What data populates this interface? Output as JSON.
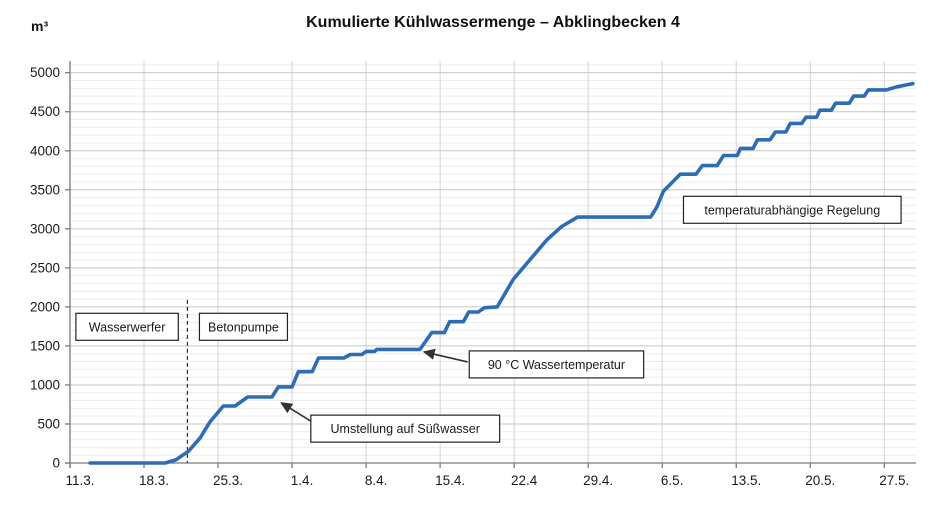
{
  "chart": {
    "title": "Kumulierte Kühlwassermenge – Abklingbecken 4",
    "unit_label": "m³"
  },
  "chart_data": {
    "type": "line",
    "title": "Kumulierte Kühlwassermenge – Abklingbecken 4",
    "ylabel": "m³",
    "xlabel": "",
    "grid": "minor horizontal every 100, major every 500, vertical weekly",
    "legend": "none",
    "x_axis": {
      "unit": "date (day.month.)",
      "domain_days": [
        0,
        80
      ],
      "tick_days": [
        0,
        7,
        14,
        21,
        28,
        35,
        42,
        49,
        56,
        63,
        70,
        77
      ],
      "tick_labels": [
        "11.3.",
        "18.3.",
        "25.3.",
        "1.4.",
        "8.4.",
        "15.4.",
        "22.4",
        "29.4.",
        "6.5.",
        "13.5.",
        "20.5.",
        "27.5."
      ]
    },
    "y_axis": {
      "unit": "m³",
      "domain": [
        0,
        5150
      ],
      "tick_step": 500,
      "minor_step": 100,
      "tick_values": [
        0,
        500,
        1000,
        1500,
        2000,
        2500,
        3000,
        3500,
        4000,
        4500,
        5000
      ]
    },
    "series": [
      {
        "name": "Kumulierte Kühlwassermenge",
        "color": "#2e6db6",
        "points_day_value": [
          [
            1.9,
            0
          ],
          [
            9.0,
            0
          ],
          [
            10.0,
            40
          ],
          [
            11.2,
            150
          ],
          [
            12.3,
            320
          ],
          [
            13.2,
            520
          ],
          [
            14.5,
            730
          ],
          [
            15.6,
            730
          ],
          [
            16.8,
            845
          ],
          [
            19.1,
            845
          ],
          [
            19.7,
            975
          ],
          [
            21.0,
            975
          ],
          [
            21.6,
            1170
          ],
          [
            22.9,
            1170
          ],
          [
            23.5,
            1345
          ],
          [
            25.9,
            1345
          ],
          [
            26.5,
            1390
          ],
          [
            27.6,
            1390
          ],
          [
            28.0,
            1430
          ],
          [
            28.8,
            1430
          ],
          [
            29.0,
            1455
          ],
          [
            33.1,
            1455
          ],
          [
            34.2,
            1670
          ],
          [
            35.4,
            1670
          ],
          [
            35.9,
            1810
          ],
          [
            37.2,
            1810
          ],
          [
            37.7,
            1935
          ],
          [
            38.6,
            1935
          ],
          [
            39.2,
            1990
          ],
          [
            40.4,
            2000
          ],
          [
            41.9,
            2350
          ],
          [
            45.1,
            2860
          ],
          [
            46.5,
            3030
          ],
          [
            48.0,
            3150
          ],
          [
            54.9,
            3150
          ],
          [
            55.5,
            3280
          ],
          [
            56.1,
            3480
          ],
          [
            57.7,
            3700
          ],
          [
            59.2,
            3700
          ],
          [
            59.8,
            3810
          ],
          [
            61.2,
            3810
          ],
          [
            61.8,
            3940
          ],
          [
            63.1,
            3940
          ],
          [
            63.4,
            4030
          ],
          [
            64.6,
            4030
          ],
          [
            65.0,
            4140
          ],
          [
            66.2,
            4140
          ],
          [
            66.7,
            4240
          ],
          [
            67.7,
            4240
          ],
          [
            68.1,
            4350
          ],
          [
            69.2,
            4350
          ],
          [
            69.6,
            4430
          ],
          [
            70.6,
            4430
          ],
          [
            70.9,
            4520
          ],
          [
            72.0,
            4520
          ],
          [
            72.4,
            4610
          ],
          [
            73.7,
            4610
          ],
          [
            74.1,
            4700
          ],
          [
            75.1,
            4700
          ],
          [
            75.5,
            4780
          ],
          [
            77.2,
            4780
          ],
          [
            78.2,
            4820
          ],
          [
            79.7,
            4860
          ]
        ]
      }
    ],
    "event_line": {
      "style": "dashed vertical",
      "day": 11.1,
      "value_from": 0,
      "value_to": 2090
    },
    "annotations": [
      {
        "id": "wasserwerfer",
        "label": "Wasserwerfer",
        "center_day": 5.4,
        "center_value": 1745,
        "arrow": null
      },
      {
        "id": "betonpumpe",
        "label": "Betonpumpe",
        "center_day": 16.4,
        "center_value": 1745,
        "arrow": null
      },
      {
        "id": "umstellung-suesswasser",
        "label": "Umstellung auf Süßwasser",
        "center_day": 31.7,
        "center_value": 440,
        "arrow": {
          "from_day": 23.2,
          "from_value": 500,
          "to_day": 20.0,
          "to_value": 769
        }
      },
      {
        "id": "wassertemperatur-90c",
        "label": "90 °C Wassertemperatur",
        "center_day": 46.0,
        "center_value": 1263,
        "arrow": {
          "from_day": 37.6,
          "from_value": 1295,
          "to_day": 33.5,
          "to_value": 1423
        }
      },
      {
        "id": "temperaturabhaengige-regelung",
        "label": "temperaturabhängige Regelung",
        "center_day": 68.3,
        "center_value": 3244,
        "arrow": null
      }
    ],
    "colors": {
      "line": "#2e6db6",
      "grid_minor": "#ececec",
      "grid_major": "#c6c6c6",
      "grid_vertical": "#d4d4d4",
      "axis": "#7a7a7a",
      "text": "#1a1a1a",
      "annotation_border": "#222222",
      "annotation_fill": "#ffffff",
      "event_line": "#333333"
    }
  }
}
